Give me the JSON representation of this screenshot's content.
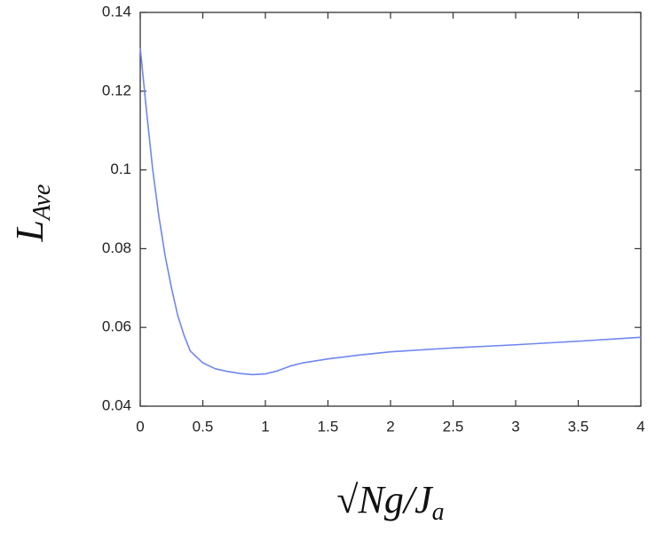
{
  "chart_data": {
    "type": "line",
    "xlabel": "√Ng/J",
    "xlabel_subscript": "a",
    "ylabel": "L",
    "ylabel_subscript": "Ave",
    "x": [
      0,
      0.05,
      0.1,
      0.15,
      0.2,
      0.25,
      0.3,
      0.35,
      0.4,
      0.5,
      0.6,
      0.7,
      0.8,
      0.9,
      1.0,
      1.1,
      1.2,
      1.3,
      1.5,
      1.75,
      2.0,
      2.5,
      3.0,
      3.5,
      4.0
    ],
    "values": [
      0.131,
      0.115,
      0.1,
      0.088,
      0.078,
      0.07,
      0.063,
      0.058,
      0.054,
      0.051,
      0.0495,
      0.0488,
      0.0483,
      0.048,
      0.0482,
      0.049,
      0.0502,
      0.051,
      0.052,
      0.053,
      0.0538,
      0.0548,
      0.0556,
      0.0565,
      0.0575
    ],
    "color": "#6f86f0",
    "xlim": [
      0,
      4
    ],
    "xticks": [
      0,
      0.5,
      1,
      1.5,
      2,
      2.5,
      3,
      3.5,
      4
    ],
    "ylim": [
      0.04,
      0.14
    ],
    "yticks": [
      0.04,
      0.06,
      0.08,
      0.1,
      0.12,
      0.14
    ],
    "grid": false
  }
}
